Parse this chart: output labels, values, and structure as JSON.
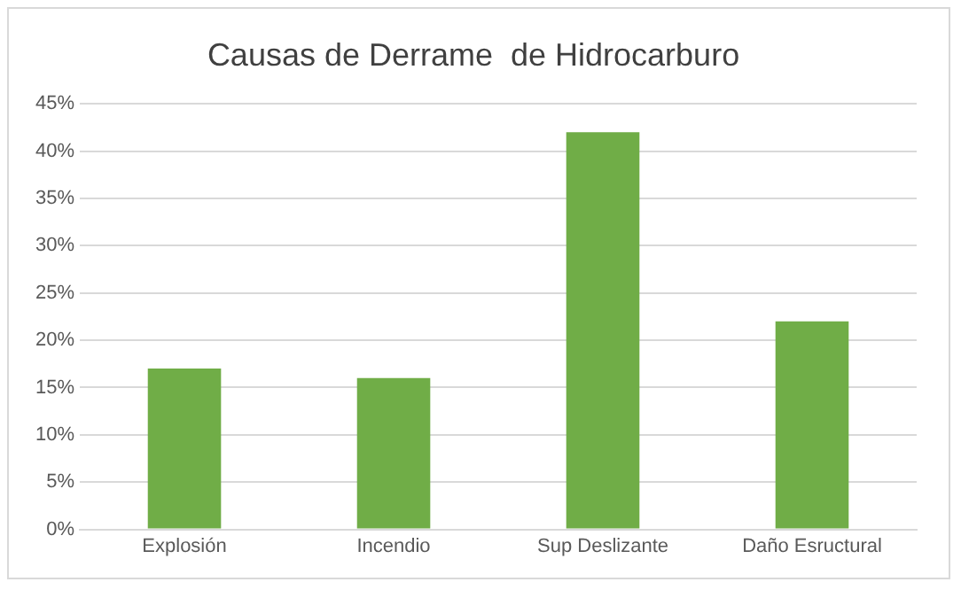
{
  "chart_data": {
    "type": "bar",
    "title": "Causas de Derrame  de Hidrocarburo",
    "categories": [
      "Explosión",
      "Incendio",
      "Sup Deslizante",
      "Daño Esructural"
    ],
    "values": [
      17,
      16,
      42,
      22
    ],
    "color": "#70ad47",
    "ylim": [
      0,
      45
    ],
    "yticks": [
      {
        "value": 0,
        "label": "0%"
      },
      {
        "value": 5,
        "label": "5%"
      },
      {
        "value": 10,
        "label": "10%"
      },
      {
        "value": 15,
        "label": "15%"
      },
      {
        "value": 20,
        "label": "20%"
      },
      {
        "value": 25,
        "label": "25%"
      },
      {
        "value": 30,
        "label": "30%"
      },
      {
        "value": 35,
        "label": "35%"
      },
      {
        "value": 40,
        "label": "40%"
      },
      {
        "value": 45,
        "label": "45%"
      }
    ],
    "grid": "y",
    "legend": false
  }
}
